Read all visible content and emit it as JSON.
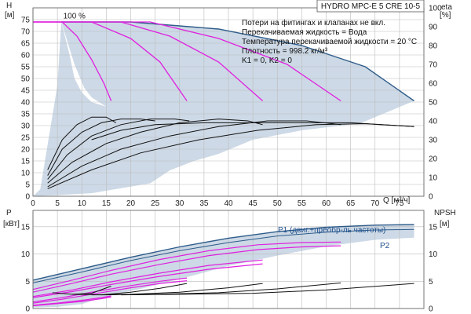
{
  "colors": {
    "envelope_fill": "#cdd9e6",
    "envelope_edge": "#2e5c8a",
    "reduced_speed_curve": "#e020e0",
    "efficiency_curve": "#111111",
    "power_curve_label": "#1f4f8c",
    "grid": "#bbbbbb"
  },
  "chart_data": [
    {
      "type": "line",
      "panel": "head-efficiency",
      "title": "HYDRO MPC-E 5 CRE 10-5",
      "notes": [
        "Потери на фитингах и клапанах не вкл.",
        "Перекачиваемая жидкость = Вода",
        "Температура перекачиваемой жидкости = 20 °C",
        "Плотность = 998.2 кг/м³",
        "K1 = 0, K2 = 0"
      ],
      "xlabel": "Q [м³/ч]",
      "x_ticks": [
        0,
        5,
        10,
        15,
        20,
        25,
        30,
        35,
        40,
        45,
        50,
        55,
        60,
        65,
        70,
        75
      ],
      "xlim": [
        0,
        80
      ],
      "left_axis": {
        "label_line1": "H",
        "label_line2": "[м]",
        "ylim": [
          0,
          80
        ],
        "ticks": [
          0,
          5,
          10,
          15,
          20,
          25,
          30,
          35,
          40,
          45,
          50,
          55,
          60,
          65,
          70,
          75
        ]
      },
      "right_axis": {
        "label_line1": "eta",
        "label_line2": "[%]",
        "ylim": [
          0,
          100
        ],
        "ticks": [
          0,
          10,
          20,
          30,
          40,
          50,
          60,
          70,
          80,
          90,
          100
        ]
      },
      "grid": true,
      "speed_label": "100 %",
      "envelope": [
        [
          0,
          0
        ],
        [
          1.5,
          3
        ],
        [
          5,
          47
        ],
        [
          5.8,
          74
        ],
        [
          20,
          74
        ],
        [
          38,
          71
        ],
        [
          55,
          64
        ],
        [
          68,
          55
        ],
        [
          78,
          40.5
        ],
        [
          67,
          31
        ],
        [
          55,
          28
        ],
        [
          45,
          24
        ],
        [
          38,
          18
        ],
        [
          33,
          15
        ],
        [
          28,
          11
        ],
        [
          24,
          5.5
        ],
        [
          12,
          1.3
        ],
        [
          5,
          0.5
        ],
        [
          2,
          0.2
        ]
      ],
      "inner_notch": [
        [
          5.8,
          74
        ],
        [
          7.5,
          60
        ],
        [
          8.5,
          50
        ],
        [
          10,
          44
        ],
        [
          12,
          40
        ],
        [
          15,
          38
        ],
        [
          12,
          42
        ],
        [
          10.5,
          46
        ],
        [
          8.5,
          56
        ]
      ],
      "reduced_speed_series": [
        {
          "values": [
            [
              0,
              74
            ],
            [
              6,
              74
            ],
            [
              9,
              68
            ],
            [
              12,
              58
            ],
            [
              14.5,
              48
            ],
            [
              16,
              40.5
            ]
          ]
        },
        {
          "values": [
            [
              0,
              74
            ],
            [
              12,
              74
            ],
            [
              20,
              67
            ],
            [
              26,
              57
            ],
            [
              31.5,
              40.5
            ]
          ]
        },
        {
          "values": [
            [
              0,
              74
            ],
            [
              18,
              74
            ],
            [
              28,
              68
            ],
            [
              38,
              57
            ],
            [
              47,
              40.5
            ]
          ]
        },
        {
          "values": [
            [
              0,
              74
            ],
            [
              24,
              74
            ],
            [
              38,
              67
            ],
            [
              52,
              56
            ],
            [
              63,
              40.5
            ]
          ]
        }
      ],
      "efficiency_series": [
        {
          "values": [
            [
              3,
              14
            ],
            [
              6,
              30
            ],
            [
              9,
              38
            ],
            [
              12,
              42
            ],
            [
              15,
              42
            ],
            [
              17,
              39
            ]
          ]
        },
        {
          "values": [
            [
              3,
              11
            ],
            [
              6,
              25
            ],
            [
              10,
              34
            ],
            [
              14,
              39
            ],
            [
              18,
              41
            ],
            [
              22,
              41
            ],
            [
              25,
              40
            ]
          ]
        },
        {
          "values": [
            [
              3,
              9
            ],
            [
              7,
              22
            ],
            [
              12,
              32
            ],
            [
              18,
              38
            ],
            [
              24,
              41
            ],
            [
              29,
              41
            ],
            [
              32,
              40
            ]
          ]
        },
        {
          "values": [
            [
              3,
              7
            ],
            [
              8,
              18
            ],
            [
              15,
              28
            ],
            [
              22,
              34
            ],
            [
              30,
              39
            ],
            [
              38,
              41
            ],
            [
              44,
              40
            ],
            [
              47,
              38
            ]
          ]
        },
        {
          "values": [
            [
              3,
              5
            ],
            [
              10,
              16
            ],
            [
              18,
              25
            ],
            [
              28,
              32
            ],
            [
              38,
              37
            ],
            [
              48,
              40
            ],
            [
              56,
              40
            ],
            [
              63,
              38
            ]
          ]
        },
        {
          "values": [
            [
              3,
              4
            ],
            [
              12,
              14
            ],
            [
              22,
              23
            ],
            [
              34,
              30
            ],
            [
              46,
              35
            ],
            [
              58,
              38
            ],
            [
              68,
              38.5
            ],
            [
              78,
              37
            ]
          ]
        },
        {
          "values": [
            [
              12,
              30
            ],
            [
              18,
              35
            ],
            [
              25,
              38
            ],
            [
              35,
              39
            ],
            [
              45,
              39
            ],
            [
              55,
              39
            ],
            [
              65,
              39
            ],
            [
              78,
              37
            ]
          ]
        }
      ]
    },
    {
      "type": "line",
      "panel": "power-npsh",
      "xlim": [
        0,
        80
      ],
      "left_axis": {
        "label_line1": "P",
        "label_line2": "[кВт]",
        "ylim": [
          0,
          18
        ],
        "ticks": [
          0,
          5,
          10,
          15
        ]
      },
      "right_axis": {
        "label_line1": "NPSH",
        "label_line2": "[м]",
        "ylim": [
          0,
          18
        ],
        "ticks": [
          0,
          5,
          10,
          15
        ]
      },
      "grid": true,
      "p1_label": "P1 (двиг.+преобр-ль частоты)",
      "p2_label": "P2",
      "envelope": [
        [
          0,
          5.2
        ],
        [
          10,
          7.3
        ],
        [
          20,
          9.4
        ],
        [
          30,
          11.3
        ],
        [
          40,
          12.9
        ],
        [
          50,
          14.1
        ],
        [
          60,
          14.9
        ],
        [
          70,
          15.3
        ],
        [
          78,
          15.4
        ],
        [
          78,
          13
        ],
        [
          70,
          12.6
        ],
        [
          60,
          11.4
        ],
        [
          50,
          9.7
        ],
        [
          40,
          7.8
        ],
        [
          30,
          5.4
        ],
        [
          22,
          3.6
        ],
        [
          15,
          2.2
        ],
        [
          10,
          0.8
        ],
        [
          5,
          0.3
        ],
        [
          0,
          0.2
        ]
      ],
      "p1_series": {
        "values": [
          [
            0,
            5.2
          ],
          [
            10,
            7.3
          ],
          [
            20,
            9.4
          ],
          [
            30,
            11.3
          ],
          [
            40,
            12.9
          ],
          [
            50,
            14.1
          ],
          [
            60,
            14.9
          ],
          [
            70,
            15.3
          ],
          [
            78,
            15.4
          ]
        ]
      },
      "p2_series": {
        "values": [
          [
            0,
            4.7
          ],
          [
            10,
            6.7
          ],
          [
            20,
            8.8
          ],
          [
            30,
            10.6
          ],
          [
            40,
            12.1
          ],
          [
            50,
            13.3
          ],
          [
            60,
            14.0
          ],
          [
            70,
            14.4
          ],
          [
            78,
            14.5
          ]
        ]
      },
      "reduced_speed_power": [
        {
          "values": [
            [
              0,
              3.5
            ],
            [
              8,
              5.2
            ],
            [
              16,
              7.0
            ],
            [
              26,
              9.0
            ],
            [
              36,
              10.6
            ],
            [
              46,
              11.7
            ],
            [
              55,
              12.1
            ],
            [
              63,
              12.2
            ]
          ]
        },
        {
          "values": [
            [
              0,
              3.0
            ],
            [
              8,
              4.6
            ],
            [
              16,
              6.3
            ],
            [
              26,
              8.1
            ],
            [
              36,
              9.7
            ],
            [
              46,
              10.8
            ],
            [
              55,
              11.3
            ],
            [
              63,
              11.5
            ]
          ]
        },
        {
          "values": [
            [
              0,
              2.2
            ],
            [
              8,
              3.4
            ],
            [
              16,
              4.9
            ],
            [
              26,
              6.5
            ],
            [
              36,
              7.9
            ],
            [
              47,
              8.9
            ]
          ]
        },
        {
          "values": [
            [
              0,
              2.0
            ],
            [
              8,
              3.1
            ],
            [
              16,
              4.4
            ],
            [
              26,
              5.9
            ],
            [
              36,
              7.2
            ],
            [
              47,
              8.2
            ]
          ]
        },
        {
          "values": [
            [
              0,
              1.2
            ],
            [
              6,
              2.0
            ],
            [
              12,
              3.0
            ],
            [
              20,
              4.2
            ],
            [
              26,
              5.0
            ],
            [
              31.5,
              5.6
            ]
          ]
        },
        {
          "values": [
            [
              0,
              1.0
            ],
            [
              6,
              1.7
            ],
            [
              12,
              2.6
            ],
            [
              20,
              3.8
            ],
            [
              26,
              4.6
            ],
            [
              31.5,
              5.1
            ]
          ]
        },
        {
          "values": [
            [
              0,
              0.6
            ],
            [
              5,
              1.0
            ],
            [
              10,
              1.5
            ],
            [
              14,
              2.0
            ],
            [
              16,
              2.3
            ]
          ]
        },
        {
          "values": [
            [
              0,
              0.5
            ],
            [
              5,
              0.9
            ],
            [
              10,
              1.3
            ],
            [
              14,
              1.8
            ],
            [
              16,
              2.1
            ]
          ]
        }
      ],
      "npsh_series": [
        {
          "values": [
            [
              4,
              2.9
            ],
            [
              8,
              2.6
            ],
            [
              12,
              2.8
            ],
            [
              16,
              4.1
            ]
          ]
        },
        {
          "values": [
            [
              8,
              2.6
            ],
            [
              14,
              2.5
            ],
            [
              20,
              3.0
            ],
            [
              26,
              3.7
            ],
            [
              31.5,
              4.6
            ]
          ]
        },
        {
          "values": [
            [
              12,
              2.5
            ],
            [
              20,
              2.6
            ],
            [
              30,
              3.0
            ],
            [
              40,
              3.8
            ],
            [
              47,
              4.6
            ]
          ]
        },
        {
          "values": [
            [
              14,
              2.5
            ],
            [
              25,
              2.6
            ],
            [
              38,
              2.9
            ],
            [
              50,
              3.6
            ],
            [
              63,
              4.7
            ]
          ]
        },
        {
          "values": [
            [
              18,
              2.5
            ],
            [
              30,
              2.6
            ],
            [
              45,
              2.8
            ],
            [
              60,
              3.4
            ],
            [
              78,
              4.6
            ]
          ]
        }
      ]
    }
  ]
}
